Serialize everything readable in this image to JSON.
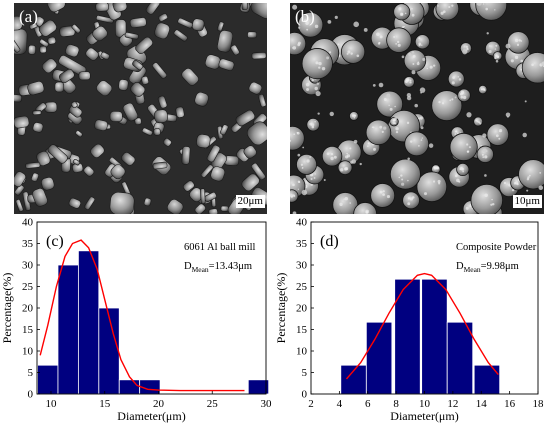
{
  "sem_images": [
    {
      "letter": "(a)",
      "scalebar": "20μm",
      "texture": "large-angular-particles"
    },
    {
      "letter": "(b)",
      "scalebar": "10μm",
      "texture": "rounded-composite-particles"
    }
  ],
  "chart_data": [
    {
      "type": "bar",
      "panel_letter": "(c)",
      "legend": [
        "6061 Al ball mill",
        "D",
        "Mean",
        "=13.43μm"
      ],
      "xlabel": "Diameter(μm)",
      "ylabel": "Percentage(%)",
      "xlim": [
        8.7,
        30
      ],
      "ylim": [
        0,
        40
      ],
      "xticks": [
        10,
        15,
        20,
        25,
        30
      ],
      "yticks": [
        0,
        5,
        10,
        15,
        20,
        25,
        30,
        35,
        40
      ],
      "bin_width": 1.9,
      "bars": [
        {
          "x": 9.7,
          "value": 6.7
        },
        {
          "x": 11.6,
          "value": 30.0
        },
        {
          "x": 13.5,
          "value": 33.3
        },
        {
          "x": 15.4,
          "value": 20.0
        },
        {
          "x": 17.3,
          "value": 3.3
        },
        {
          "x": 19.2,
          "value": 3.3
        },
        {
          "x": 29.3,
          "value": 3.3
        }
      ],
      "fit_curve": {
        "color": "#ff0000",
        "points": [
          [
            9.0,
            9
          ],
          [
            9.7,
            16
          ],
          [
            10.5,
            25
          ],
          [
            11.3,
            32
          ],
          [
            12.0,
            35
          ],
          [
            12.8,
            35.8
          ],
          [
            13.5,
            34
          ],
          [
            14.3,
            29
          ],
          [
            15.0,
            22
          ],
          [
            15.8,
            14
          ],
          [
            16.5,
            8
          ],
          [
            17.3,
            4
          ],
          [
            18.0,
            2
          ],
          [
            19.0,
            1.1
          ],
          [
            20.0,
            0.9
          ],
          [
            22.0,
            0.8
          ],
          [
            24.0,
            0.8
          ],
          [
            26.0,
            0.8
          ],
          [
            28.0,
            0.8
          ]
        ]
      },
      "bar_color": "#000080"
    },
    {
      "type": "bar",
      "panel_letter": "(d)",
      "legend": [
        "Composite Powder",
        "D",
        "Mean",
        "=9.98μm"
      ],
      "xlabel": "Diameter(μm)",
      "ylabel": "Percentage(%)",
      "xlim": [
        2,
        18
      ],
      "ylim": [
        0,
        40
      ],
      "xticks": [
        2,
        4,
        6,
        8,
        10,
        12,
        14,
        16,
        18
      ],
      "yticks": [
        0,
        5,
        10,
        15,
        20,
        25,
        30,
        35,
        40
      ],
      "bin_width": 1.8,
      "bars": [
        {
          "x": 5.0,
          "value": 6.7
        },
        {
          "x": 6.8,
          "value": 16.7
        },
        {
          "x": 8.8,
          "value": 26.7
        },
        {
          "x": 10.7,
          "value": 26.7
        },
        {
          "x": 12.5,
          "value": 16.7
        },
        {
          "x": 14.4,
          "value": 6.7
        }
      ],
      "fit_curve": {
        "color": "#ff0000",
        "points": [
          [
            4.5,
            3.5
          ],
          [
            5.5,
            7.3
          ],
          [
            6.5,
            12.7
          ],
          [
            7.5,
            18.8
          ],
          [
            8.5,
            24.3
          ],
          [
            9.5,
            27.6
          ],
          [
            10.0,
            28.0
          ],
          [
            10.5,
            27.6
          ],
          [
            11.5,
            24.3
          ],
          [
            12.5,
            18.8
          ],
          [
            13.5,
            12.7
          ],
          [
            14.5,
            7.3
          ],
          [
            15.2,
            4.5
          ]
        ]
      },
      "bar_color": "#000080"
    }
  ]
}
